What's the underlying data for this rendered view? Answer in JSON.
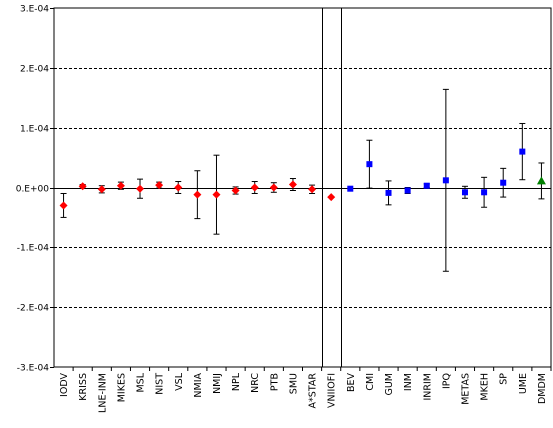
{
  "chart_data": {
    "type": "scatter",
    "title": "",
    "xlabel": "",
    "ylabel": "",
    "ylim": [
      -0.0003,
      0.0003
    ],
    "y_ticks": [
      {
        "value": 0.0003,
        "label": "3.E-04"
      },
      {
        "value": 0.0002,
        "label": "2.E-04"
      },
      {
        "value": 0.0001,
        "label": "1.E-04"
      },
      {
        "value": 0.0,
        "label": "0.E+00"
      },
      {
        "value": -0.0001,
        "label": "-1.E-04"
      },
      {
        "value": -0.0002,
        "label": "-2.E-04"
      },
      {
        "value": -0.0003,
        "label": "-3.E-04"
      }
    ],
    "grid": "horizontal dashed",
    "legend": "none",
    "categories": [
      "IODV",
      "KRISS",
      "LNE-INM",
      "MIKES",
      "MSL",
      "NIST",
      "VSL",
      "NMIA",
      "NMIJ",
      "NPL",
      "NRC",
      "PTB",
      "SMU",
      "A*STAR",
      "VNIIOFI",
      "BEV",
      "CMI",
      "GUM",
      "INM",
      "INRIM",
      "IPQ",
      "METAS",
      "MKEH",
      "SP",
      "UME",
      "DMDM"
    ],
    "separators_after": [
      "A*STAR",
      "VNIIOFI"
    ],
    "series": [
      {
        "marker": "diamond",
        "color": "#ff0000",
        "points": [
          {
            "category": "IODV",
            "y": -3e-05,
            "err": 2e-05
          },
          {
            "category": "KRISS",
            "y": 2e-06,
            "err": 3e-06
          },
          {
            "category": "LNE-INM",
            "y": -3e-06,
            "err": 6e-06
          },
          {
            "category": "MIKES",
            "y": 3e-06,
            "err": 6e-06
          },
          {
            "category": "MSL",
            "y": -2e-06,
            "err": 1.6e-05
          },
          {
            "category": "NIST",
            "y": 4e-06,
            "err": 5e-06
          },
          {
            "category": "VSL",
            "y": 0.0,
            "err": 1e-05
          },
          {
            "category": "NMIA",
            "y": -1.2e-05,
            "err": 4e-05
          },
          {
            "category": "NMIJ",
            "y": -1.2e-05,
            "err": 6.6e-05
          },
          {
            "category": "NPL",
            "y": -5e-06,
            "err": 6e-06
          },
          {
            "category": "NRC",
            "y": 0.0,
            "err": 1e-05
          },
          {
            "category": "PTB",
            "y": 0.0,
            "err": 8e-06
          },
          {
            "category": "SMU",
            "y": 5e-06,
            "err": 1e-05
          },
          {
            "category": "A*STAR",
            "y": -3e-06,
            "err": 7e-06
          },
          {
            "category": "VNIIOFI",
            "y": -1.6e-05,
            "err": 0
          }
        ]
      },
      {
        "marker": "square",
        "color": "#0000ff",
        "points": [
          {
            "category": "BEV",
            "y": -2e-06,
            "err": 0
          },
          {
            "category": "CMI",
            "y": 3.9e-05,
            "err": 4e-05
          },
          {
            "category": "GUM",
            "y": -9e-06,
            "err": 2e-05
          },
          {
            "category": "INM",
            "y": -5e-06,
            "err": 5e-06
          },
          {
            "category": "INRIM",
            "y": 3e-06,
            "err": 3e-06
          },
          {
            "category": "IPQ",
            "y": 1.2e-05,
            "err": 0.000152
          },
          {
            "category": "METAS",
            "y": -8e-06,
            "err": 1e-05
          },
          {
            "category": "MKEH",
            "y": -8e-06,
            "err": 2.5e-05
          },
          {
            "category": "SP",
            "y": 8e-06,
            "err": 2.4e-05
          },
          {
            "category": "UME",
            "y": 6e-05,
            "err": 4.7e-05
          }
        ]
      },
      {
        "marker": "triangle",
        "color": "#008000",
        "points": [
          {
            "category": "DMDM",
            "y": 1.1e-05,
            "err": 3e-05
          }
        ]
      }
    ]
  }
}
